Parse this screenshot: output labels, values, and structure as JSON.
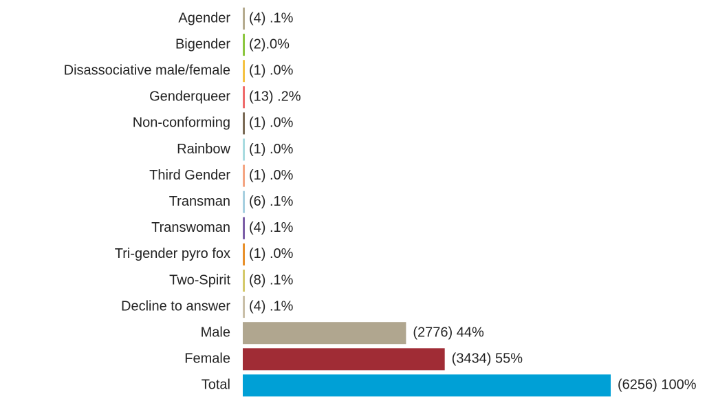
{
  "chart_data": {
    "type": "barh",
    "categories": [
      "Agender",
      "Bigender",
      "Disassociative male/female",
      "Genderqueer",
      "Non-conforming",
      "Rainbow",
      "Third Gender",
      "Transman",
      "Transwoman",
      "Tri-gender pyro fox",
      "Two-Spirit",
      "Decline to answer",
      "Male",
      "Female",
      "Total"
    ],
    "values": [
      4,
      2,
      1,
      13,
      1,
      1,
      1,
      6,
      4,
      1,
      8,
      4,
      2776,
      3434,
      6256
    ],
    "value_labels": [
      "(4) .1%",
      "(2).0%",
      "(1) .0%",
      "(13) .2%",
      "(1) .0%",
      "(1) .0%",
      "(1) .0%",
      "(6) .1%",
      "(4) .1%",
      "(1) .0%",
      "(8) .1%",
      "(4) .1%",
      "(2776) 44%",
      "(3434) 55%",
      "(6256) 100%"
    ],
    "colors": [
      "#b5ab8f",
      "#8cc63f",
      "#f5c242",
      "#ef6b6b",
      "#7a6a55",
      "#a8dbe0",
      "#f4a582",
      "#a6cfe0",
      "#7b5ea7",
      "#e8902a",
      "#d4c96a",
      "#c9bfa8",
      "#b0a68f",
      "#a02c35",
      "#00a0d6"
    ]
  }
}
